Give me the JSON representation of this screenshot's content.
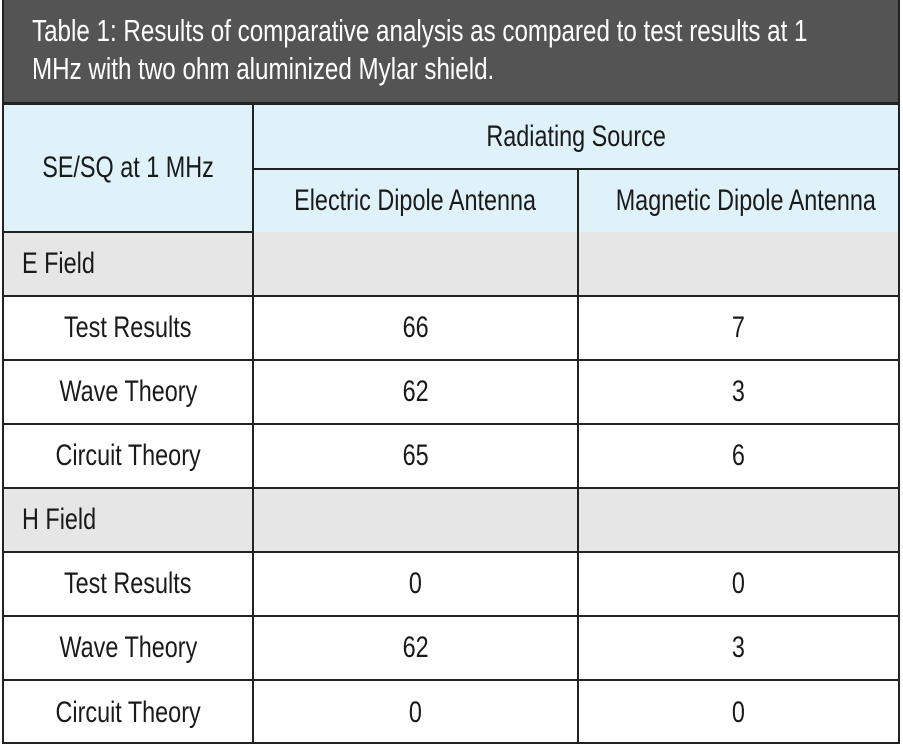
{
  "title": "Table 1: Results of comparative analysis as compared to test results at 1\nMHz with two ohm aluminized Mylar shield.",
  "colors": {
    "title_bg": "#545454",
    "header_bg": "#dff2fa",
    "section_bg": "#e6e6e6"
  },
  "header": {
    "row_label": "SE/SQ at 1 MHz",
    "group": "Radiating Source",
    "columns": [
      "Electric Dipole Antenna",
      "Magnetic Dipole Antenna"
    ]
  },
  "sections": [
    {
      "name": "E Field",
      "rows": [
        {
          "label": "Test Results",
          "values": [
            "66",
            "7"
          ]
        },
        {
          "label": "Wave Theory",
          "values": [
            "62",
            "3"
          ]
        },
        {
          "label": "Circuit Theory",
          "values": [
            "65",
            "6"
          ]
        }
      ]
    },
    {
      "name": "H Field",
      "rows": [
        {
          "label": "Test Results",
          "values": [
            "0",
            "0"
          ]
        },
        {
          "label": "Wave Theory",
          "values": [
            "62",
            "3"
          ]
        },
        {
          "label": "Circuit Theory",
          "values": [
            "0",
            "0"
          ]
        }
      ]
    }
  ]
}
